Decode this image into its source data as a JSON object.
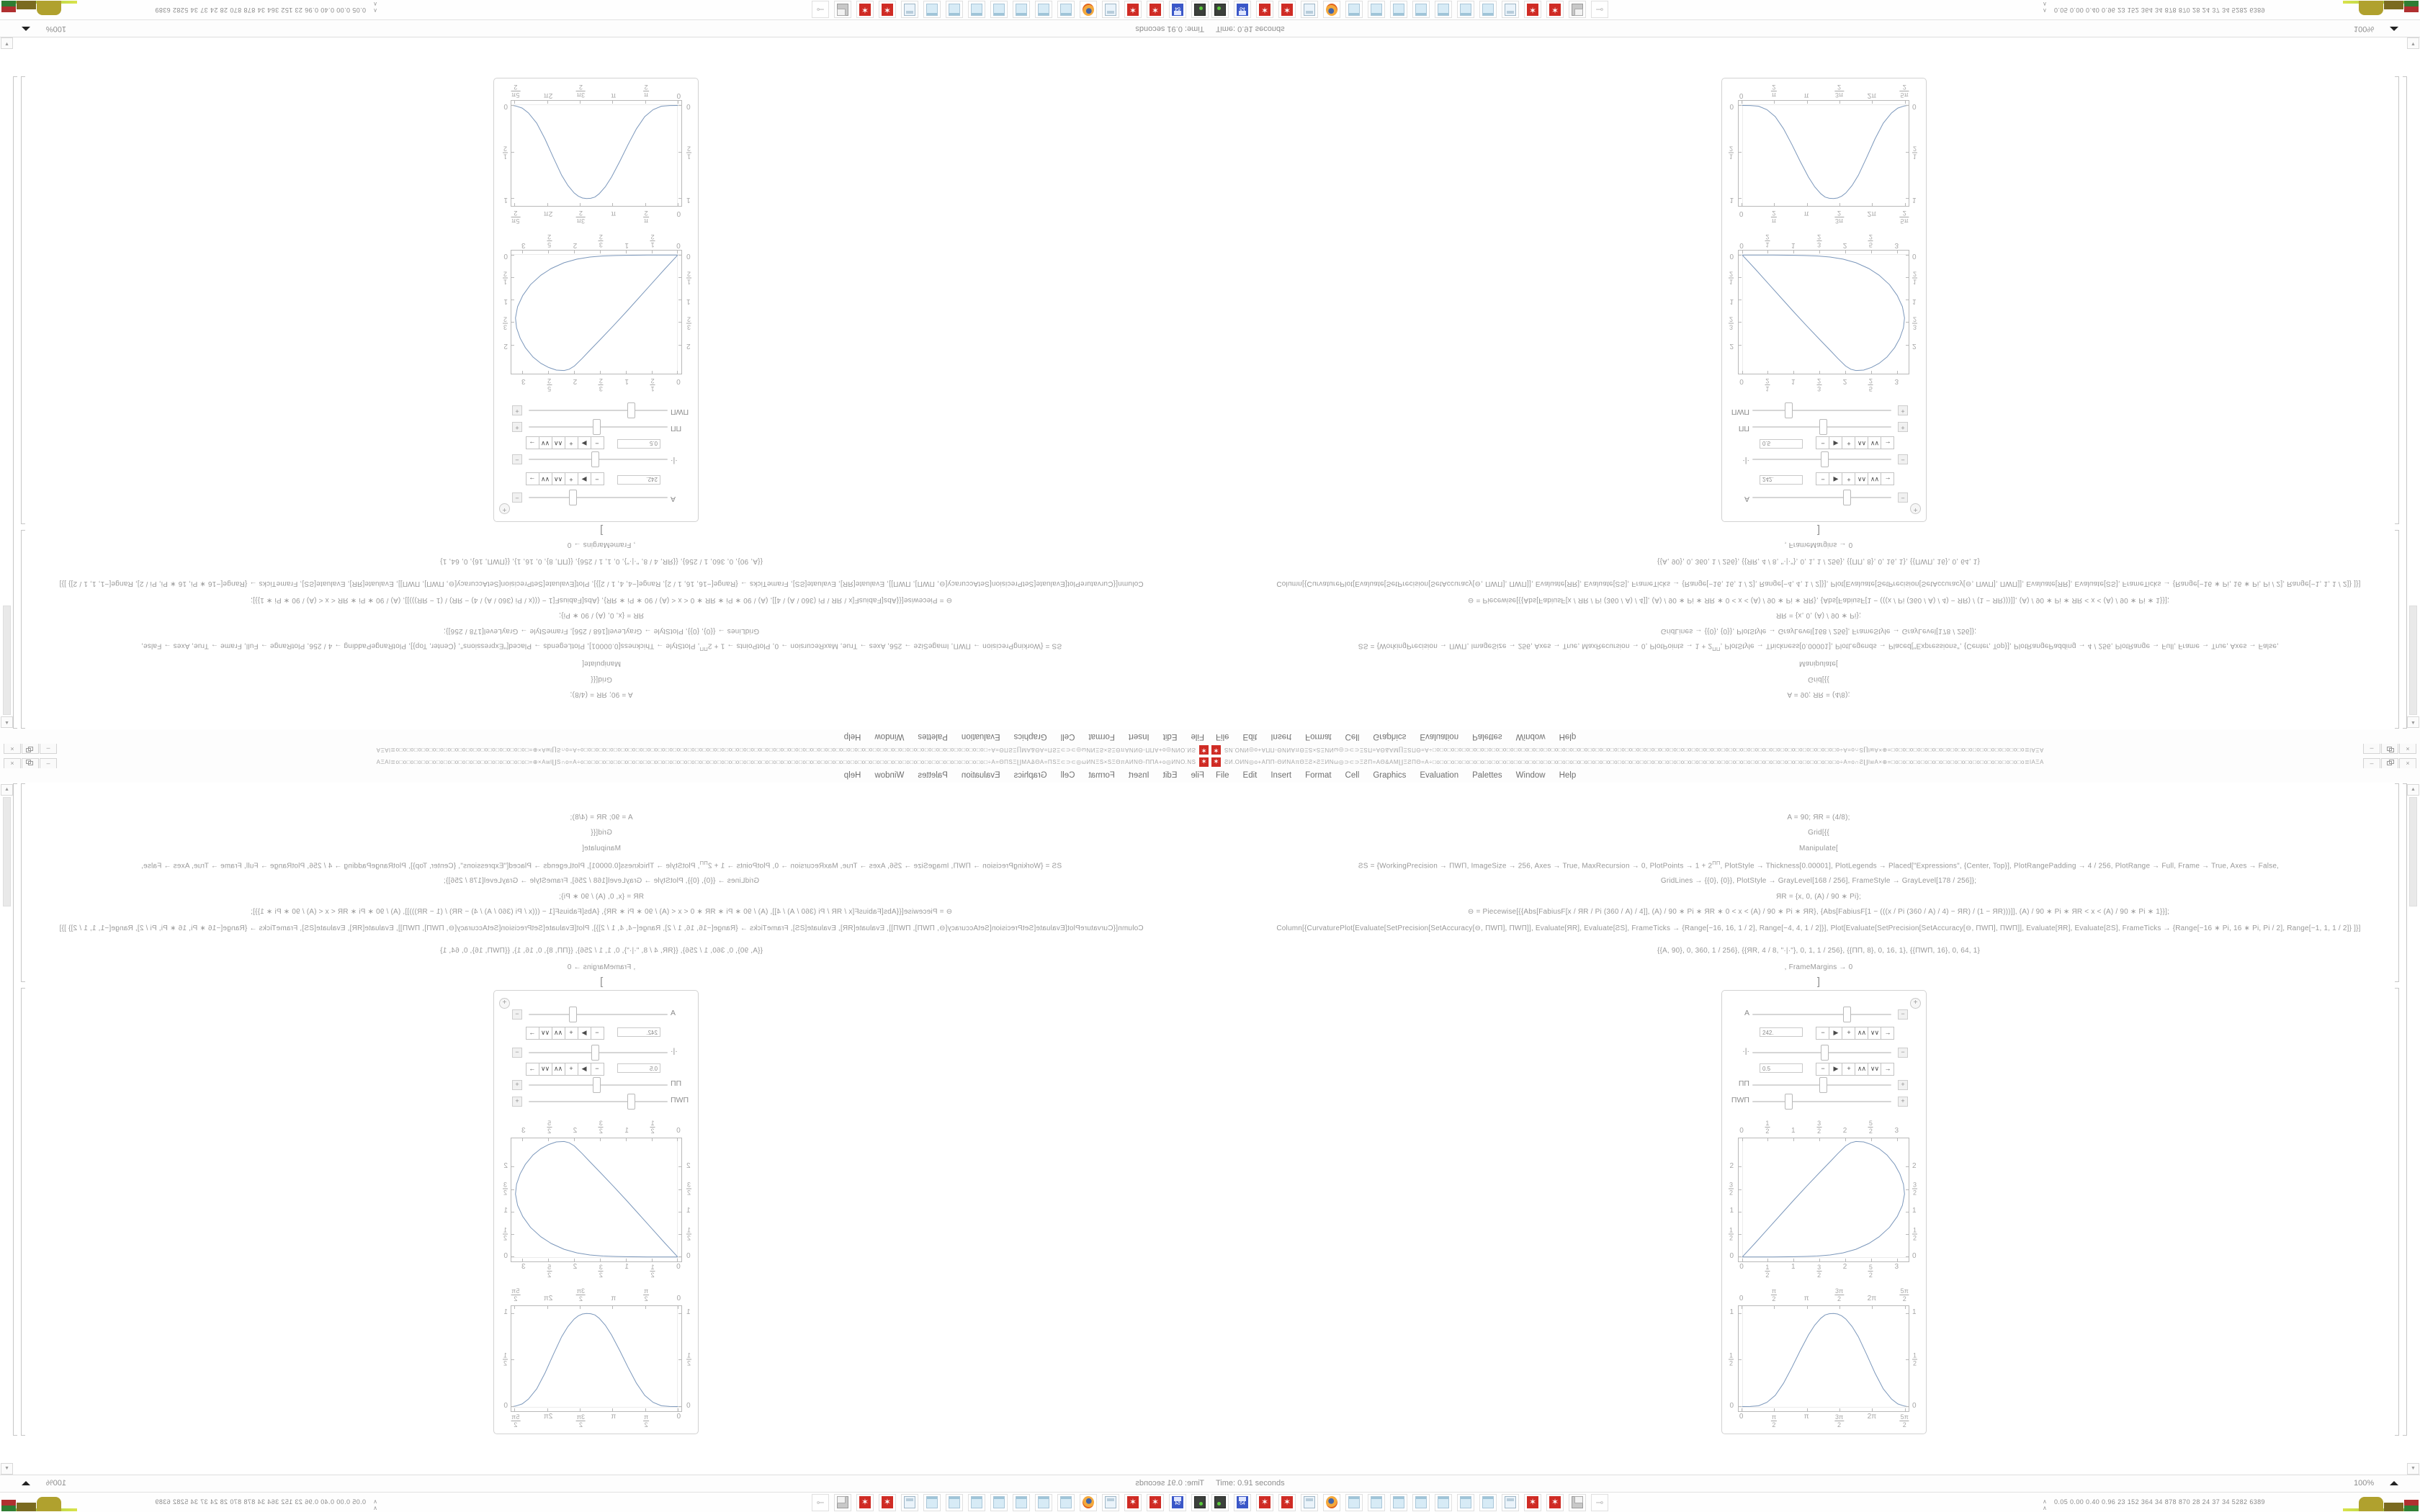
{
  "window": {
    "title": "ƧИ.ΟИΝ◎o+ΑΠΠ◦ΘИΝΑπΘΞƧ×ƧΞИΝω◎⊃⊂⊃ΞƧΠ=ΑΘ&ΑΜ∐ΞƧΠΘ=Α÷□o□o□o□o□o□o□o□o□o□o□o□o□o□o□o□o□o□o□o□o□o□o□o□o□o□o□o□o□o□o□o□o□o□o□o□o□o□o□o□o□o□o□o□o□o□o□o□o□o□o□o□o□o□o□o÷Α=o∩Ƨ∐lwΑ×⊕=□o□o□o□o□o□o□o□o□o□o□o□o□o□o□o□o□o□o≣lΑΞΑ",
    "minimize_label": "–",
    "close_label": "×"
  },
  "menu": {
    "items": [
      "File",
      "Edit",
      "Insert",
      "Format",
      "Cell",
      "Graphics",
      "Evaluation",
      "Palettes",
      "Window",
      "Help"
    ]
  },
  "notebook": {
    "code": {
      "l1": "Α = 90; ЯR = (4/8);",
      "l2": "Grid[{{",
      "l3": "Manipulate[",
      "l4a": "ƧS = {WorkingPrecision → ΠWΠ, ImageSize → 256, Axes → True, MaxRecursion → 0, PlotPoints → 1 + 2",
      "l4sup": "ΠΠ",
      "l4b": ", PlotStyle → Thickness[0.00001], PlotLegends →  Placed[\"Expressions\", {Center, Top}], PlotRangePadding → 4 / 256, PlotRange → Full, Frame → True, Axes → False,",
      "l5": "GridLines → {{0}, {0}}, PlotStyle → GrayLevel[168 / 256], FrameStyle → GrayLevel[178 / 256]};",
      "l6": "ЯR = {x, 0, (Α) / 90 ∗ Pi};",
      "l7": "⊖ = Piecewise[{{Abs[FabiusF[x / ЯR / Pi (360 / Α) / 4]], (Α) / 90 ∗ Pi ∗ ЯR ∗ 0 < x < (Α) / 90 ∗ Pi ∗ ЯR}, {Abs[FabiusF[1 − (((x / Pi (360 / Α) / 4) − ЯR) / (1 − ЯR)))]], (Α) / 90 ∗ Pi ∗ ЯR < x < (Α) / 90 ∗ Pi ∗ 1}}];",
      "l8": "Column[{CurvaturePlot[Evaluate[SetPrecision[SetAccuracy[⊖, ΠWΠ], ΠWΠ]], Evaluate[ЯR], Evaluate[ƧS], FrameTicks → {Range[−16, 16, 1 / 2], Range[−4, 4, 1 / 2]}], Plot[Evaluate[SetPrecision[SetAccuracy[⊖, ΠWΠ], ΠWΠ]], Evaluate[ЯR], Evaluate[ƧS], FrameTicks → {Range[−16 ∗ Pi, 16 ∗ Pi, Pi / 2], Range[−1, 1, 1 / 2]} ]}]",
      "l9": "{{Α, 90}, 0, 360, 1 / 256}, {{ЯR, 4 / 8, \"·|·\"}, 0, 1, 1 / 256}, {{ΠΠ, 8}, 0, 16, 1}, {{ΠWΠ, 16}, 0, 64, 1}",
      "l10": ", FrameMargins → 0",
      "l11": "]",
      "l12": "}}]"
    },
    "status": {
      "time": "Time: 0.91 seconds",
      "magnification": "100%"
    },
    "scrollbar": {
      "up": "▲",
      "down": "▼"
    }
  },
  "manipulate": {
    "menu_icon": "+",
    "rows": [
      {
        "label": "Α",
        "slider_pos": 0.672,
        "expanded": true,
        "toggle": "−",
        "value": "242."
      },
      {
        "label": "·|·",
        "slider_pos": 0.513,
        "expanded": true,
        "toggle": "−",
        "value": "0.5"
      },
      {
        "label": "ΠΠ",
        "slider_pos": 0.504,
        "expanded": false,
        "toggle": "+",
        "value": ""
      },
      {
        "label": "ΠWΠ",
        "slider_pos": 0.252,
        "expanded": false,
        "toggle": "+",
        "value": ""
      }
    ],
    "stepper_buttons": [
      "−",
      "▶",
      "+",
      "∧∧",
      "∨∨",
      "→"
    ]
  },
  "chart_data": [
    {
      "type": "line",
      "name": "curvature-plot-teardrop",
      "xlim": [
        -0.07,
        3.22
      ],
      "ylim": [
        -0.1,
        2.64
      ],
      "xticks": [
        {
          "v": 0,
          "l": "0"
        },
        {
          "v": 0.5,
          "l": "1/2"
        },
        {
          "v": 1,
          "l": "1"
        },
        {
          "v": 1.5,
          "l": "3/2"
        },
        {
          "v": 2,
          "l": "2"
        },
        {
          "v": 2.5,
          "l": "5/2"
        },
        {
          "v": 3,
          "l": "3"
        }
      ],
      "yticks": [
        {
          "v": 0,
          "l": "0"
        },
        {
          "v": 0.5,
          "l": "1/2"
        },
        {
          "v": 1,
          "l": "1"
        },
        {
          "v": 1.5,
          "l": "3/2"
        },
        {
          "v": 2,
          "l": "2"
        }
      ],
      "gridlines": {
        "x": 0,
        "y": 0
      },
      "points": [
        [
          0,
          0
        ],
        [
          0.25,
          0.31
        ],
        [
          0.5,
          0.63
        ],
        [
          0.75,
          0.95
        ],
        [
          1,
          1.27
        ],
        [
          1.25,
          1.58
        ],
        [
          1.5,
          1.88
        ],
        [
          1.7,
          2.12
        ],
        [
          1.85,
          2.3
        ],
        [
          2.0,
          2.47
        ],
        [
          2.1,
          2.54
        ],
        [
          2.2,
          2.57
        ],
        [
          2.35,
          2.56
        ],
        [
          2.5,
          2.5
        ],
        [
          2.65,
          2.41
        ],
        [
          2.8,
          2.27
        ],
        [
          2.95,
          2.06
        ],
        [
          3.05,
          1.85
        ],
        [
          3.12,
          1.62
        ],
        [
          3.14,
          1.4
        ],
        [
          3.1,
          1.15
        ],
        [
          3.0,
          0.9
        ],
        [
          2.85,
          0.66
        ],
        [
          2.65,
          0.45
        ],
        [
          2.45,
          0.3
        ],
        [
          2.2,
          0.17
        ],
        [
          1.95,
          0.09
        ],
        [
          1.7,
          0.045
        ],
        [
          1.45,
          0.02
        ],
        [
          1.2,
          0.01
        ],
        [
          0.9,
          0.004
        ],
        [
          0.6,
          0.001
        ],
        [
          0.3,
          0
        ],
        [
          0,
          0
        ]
      ],
      "color": "#7b97bb"
    },
    {
      "type": "line",
      "name": "fabius-bump-plot",
      "xlim": [
        -0.16,
        8.02
      ],
      "ylim": [
        -0.05,
        1.08
      ],
      "xticks": [
        {
          "v": 0,
          "l": "0"
        },
        {
          "v": 1.5708,
          "l": "π/2"
        },
        {
          "v": 3.1416,
          "l": "π"
        },
        {
          "v": 4.7124,
          "l": "3π/2"
        },
        {
          "v": 6.2832,
          "l": "2π"
        },
        {
          "v": 7.854,
          "l": "5π/2"
        }
      ],
      "yticks": [
        {
          "v": 0,
          "l": "0"
        },
        {
          "v": 0.5,
          "l": "1/2"
        },
        {
          "v": 1,
          "l": "1"
        }
      ],
      "gridlines": {
        "x": 0,
        "y": 0
      },
      "points": [
        [
          0,
          0
        ],
        [
          0.4,
          0.001
        ],
        [
          0.8,
          0.008
        ],
        [
          1.2,
          0.045
        ],
        [
          1.6,
          0.12
        ],
        [
          2.0,
          0.25
        ],
        [
          2.4,
          0.42
        ],
        [
          2.8,
          0.6
        ],
        [
          3.2,
          0.77
        ],
        [
          3.5,
          0.875
        ],
        [
          3.8,
          0.95
        ],
        [
          4.0,
          0.985
        ],
        [
          4.2,
          0.998
        ],
        [
          4.4,
          1.0
        ],
        [
          4.6,
          0.995
        ],
        [
          4.8,
          0.975
        ],
        [
          5.0,
          0.94
        ],
        [
          5.3,
          0.86
        ],
        [
          5.6,
          0.75
        ],
        [
          6.0,
          0.56
        ],
        [
          6.4,
          0.36
        ],
        [
          6.8,
          0.19
        ],
        [
          7.2,
          0.08
        ],
        [
          7.5,
          0.028
        ],
        [
          7.8,
          0.006
        ],
        [
          7.95,
          0
        ]
      ],
      "color": "#7b97bb"
    }
  ],
  "taskbar": {
    "icons": [
      "capture",
      "floppy",
      "spikey",
      "spikey",
      "calculator",
      "firefox",
      "notepad",
      "notepad",
      "notepad",
      "notepad",
      "notepad",
      "notepad",
      "notepad",
      "calculator",
      "spikey",
      "spikey",
      "printer",
      "plug"
    ],
    "floppy_label": "64",
    "spikey_glyph": "✶",
    "plug_glyph": "⊸",
    "monitor_numbers": "0.05 0.00 0.40 0.96   23   152   364   34   878   870   28   24   37   34   5282 6389"
  },
  "colors": {
    "accent_red": "#cf2b24",
    "plot_curve": "#7b97bb",
    "frame_gray": "#b9b9b9",
    "text_gray": "#8e8e8e"
  }
}
